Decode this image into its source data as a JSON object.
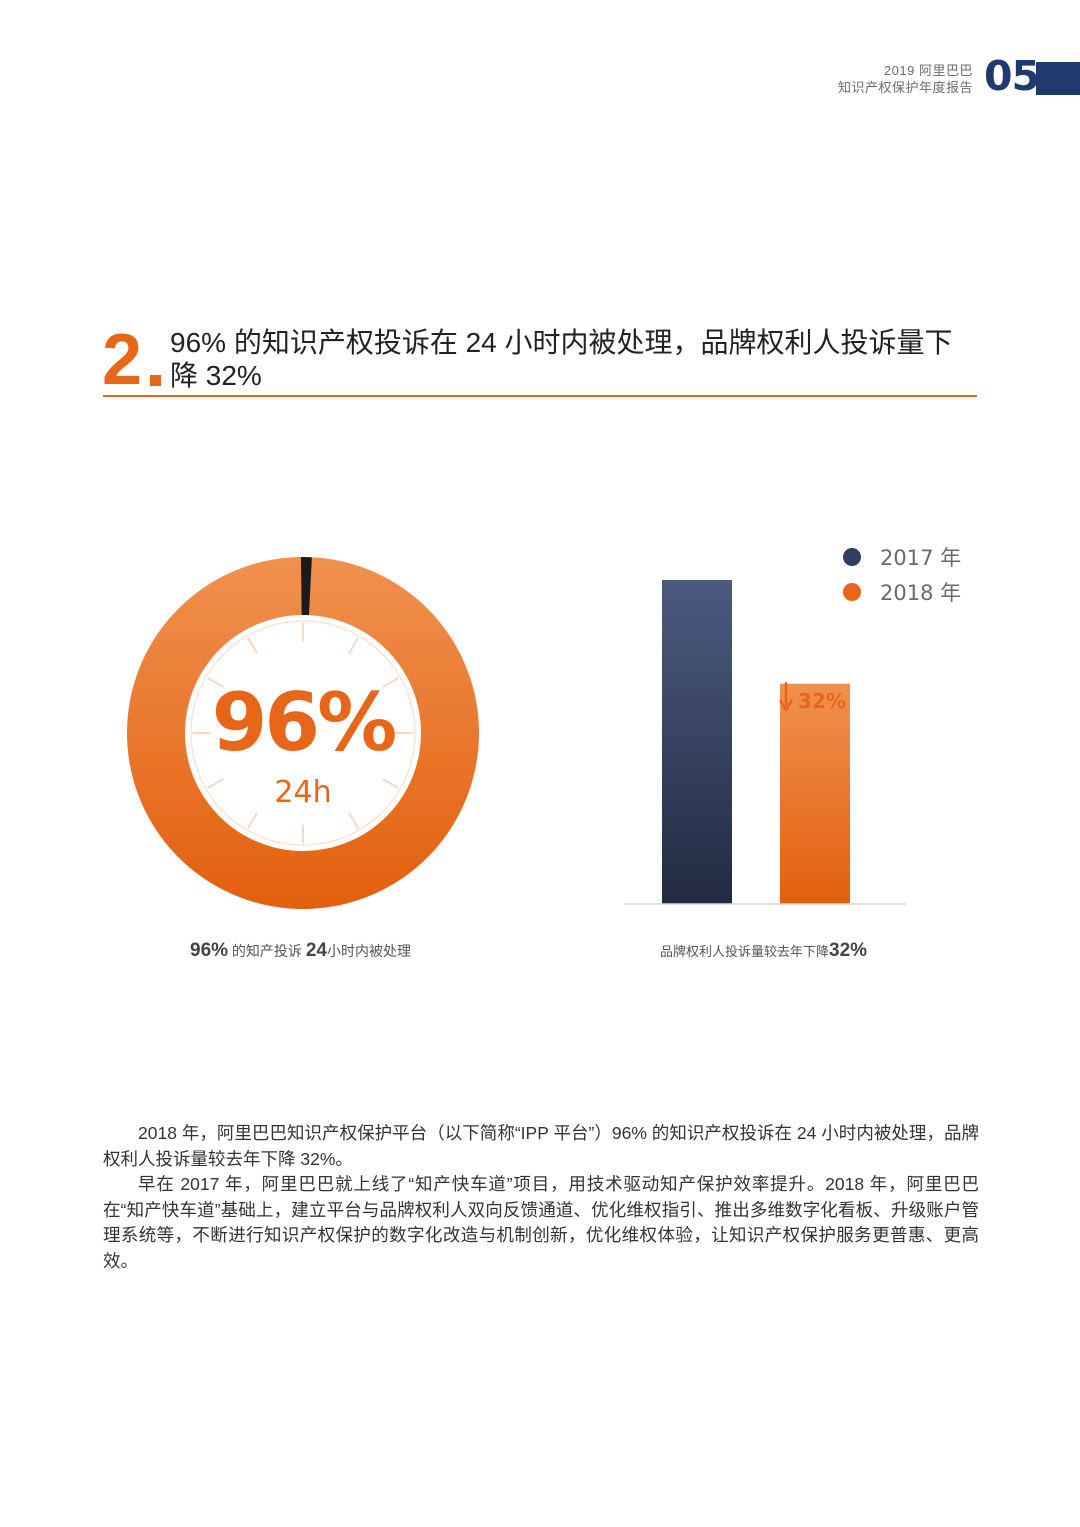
{
  "header": {
    "line1": "2019 阿里巴巴",
    "line2": "知识产权保护年度报告",
    "page_number": "05",
    "accent_color": "#1f3a6e"
  },
  "section": {
    "number": "2",
    "title": "96% 的知识产权投诉在 24 小时内被处理，品牌权利人投诉量下降 32%",
    "accent_color": "#e8661a"
  },
  "donut": {
    "percent_label": "96%",
    "time_label": "24h",
    "caption_num": "96%",
    "caption_mid": "的知产投诉",
    "caption_num2": "24",
    "caption_end": "小时内被处理"
  },
  "bar_chart": {
    "drop_label": "32%",
    "caption_text": "品牌权利人投诉量较去年下降",
    "caption_num": "32%"
  },
  "chart_data": [
    {
      "type": "pie",
      "values": [
        96,
        4
      ],
      "colors": [
        "#e8661a",
        "#1a1a1a"
      ]
    },
    {
      "type": "bar",
      "categories": [
        "2017 年",
        "2018 年"
      ],
      "values": [
        100,
        68
      ],
      "colors": [
        "#2f3d5e",
        "#e8661a"
      ],
      "legend": "top-right"
    }
  ],
  "body": {
    "p1": "2018 年，阿里巴巴知识产权保护平台（以下简称“IPP 平台”）96% 的知识产权投诉在 24 小时内被处理，品牌权利人投诉量较去年下降 32%。",
    "p2": "早在 2017 年，阿里巴巴就上线了“知产快车道”项目，用技术驱动知产保护效率提升。2018 年，阿里巴巴在“知产快车道”基础上，建立平台与品牌权利人双向反馈通道、优化维权指引、推出多维数字化看板、升级账户管理系统等，不断进行知识产权保护的数字化改造与机制创新，优化维权体验，让知识产权保护服务更普惠、更高效。"
  }
}
